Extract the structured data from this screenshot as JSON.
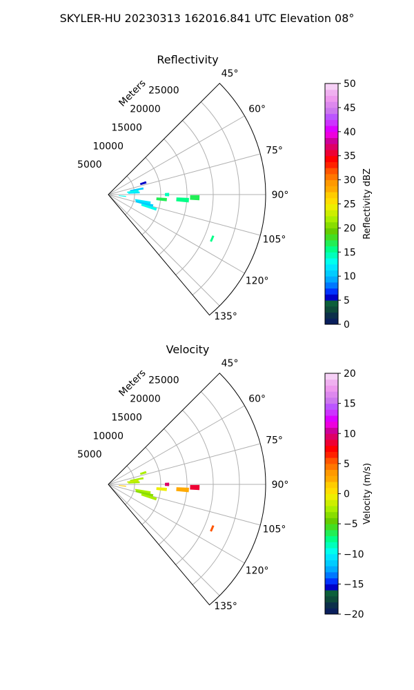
{
  "figure_title": "SKYLER-HU  20230313  162016.841 UTC Elevation 08°",
  "chart_data": [
    {
      "type": "polar-sector",
      "title": "Reflectivity",
      "radial_label": "Meters",
      "radial_ticks": [
        5000,
        10000,
        15000,
        20000,
        25000
      ],
      "radial_tick_labels": [
        "5000",
        "10000",
        "15000",
        "20000",
        "25000"
      ],
      "rlim": [
        0,
        30000
      ],
      "azimuth_range_deg": [
        45,
        140
      ],
      "azimuth_ticks": [
        "45°",
        "60°",
        "75°",
        "90°",
        "105°",
        "120°",
        "135°"
      ],
      "grid": true,
      "colorbar": {
        "label": "Reflectivity dBZ",
        "range": [
          0,
          50
        ],
        "ticks": [
          "0",
          "5",
          "10",
          "15",
          "20",
          "25",
          "30",
          "35",
          "40",
          "45",
          "50"
        ],
        "colors": [
          "#0a1f5c",
          "#0c2f4a",
          "#0e4a3a",
          "#0d5f3a",
          "#0000c8",
          "#0033ff",
          "#0077ff",
          "#00aaff",
          "#00ccff",
          "#00e6ff",
          "#00ffee",
          "#00ffbb",
          "#00ff88",
          "#22ee55",
          "#44dd22",
          "#66cc00",
          "#88dd00",
          "#aaee00",
          "#ccee00",
          "#eeee00",
          "#ffdd00",
          "#ffcc00",
          "#ffaa00",
          "#ff9900",
          "#ff7700",
          "#ff5500",
          "#ff2200",
          "#ff0000",
          "#ee0033",
          "#dd0066",
          "#cc0099",
          "#ee00dd",
          "#dd00ff",
          "#cc33ff",
          "#bb55ff",
          "#cc77ee",
          "#dd88ee",
          "#ee99ee",
          "#f0b0f0",
          "#f6d0f6"
        ]
      },
      "echoes": [
        {
          "az": 80,
          "r": [
            4200,
            6800
          ],
          "value": 10
        },
        {
          "az": 83,
          "r": [
            3600,
            5800
          ],
          "value": 13
        },
        {
          "az": 86,
          "r": [
            3800,
            6000
          ],
          "value": 12
        },
        {
          "az": 72,
          "r": [
            6400,
            7600
          ],
          "value": 6
        },
        {
          "az": 96,
          "r": [
            2000,
            3400
          ],
          "value": 13
        },
        {
          "az": 101,
          "r": [
            5200,
            8200
          ],
          "value": 12
        },
        {
          "az": 104,
          "r": [
            5400,
            8800
          ],
          "value": 11
        },
        {
          "az": 107,
          "r": [
            6600,
            9600
          ],
          "value": 13
        },
        {
          "az": 95,
          "r": [
            9200,
            11200
          ],
          "value": 17
        },
        {
          "az": 94,
          "r": [
            13000,
            15400
          ],
          "value": 16
        },
        {
          "az": 92,
          "r": [
            15600,
            17400
          ],
          "value": 17
        },
        {
          "az": 90,
          "r": [
            10800,
            11600
          ],
          "value": 14
        },
        {
          "az": 113,
          "r": [
            21300,
            21700
          ],
          "value": 15
        }
      ]
    },
    {
      "type": "polar-sector",
      "title": "Velocity",
      "radial_label": "Meters",
      "radial_ticks": [
        5000,
        10000,
        15000,
        20000,
        25000
      ],
      "radial_tick_labels": [
        "5000",
        "10000",
        "15000",
        "20000",
        "25000"
      ],
      "rlim": [
        0,
        30000
      ],
      "azimuth_range_deg": [
        45,
        140
      ],
      "azimuth_ticks": [
        "45°",
        "60°",
        "75°",
        "90°",
        "105°",
        "120°",
        "135°"
      ],
      "grid": true,
      "colorbar": {
        "label": "Velocity (m/s)",
        "range": [
          -20,
          20
        ],
        "ticks": [
          "−20",
          "−15",
          "−10",
          "−5",
          "0",
          "5",
          "10",
          "15",
          "20"
        ],
        "colors": [
          "#0a1f5c",
          "#0c2f4a",
          "#0e4a3a",
          "#0d5f3a",
          "#0000c8",
          "#0033ff",
          "#0077ff",
          "#00aaff",
          "#00ccff",
          "#00e6ff",
          "#00ffee",
          "#00ffbb",
          "#00ff88",
          "#22ee55",
          "#44dd22",
          "#66cc00",
          "#88dd00",
          "#aaee00",
          "#ccee00",
          "#eeee00",
          "#ffdd00",
          "#ffcc00",
          "#ffaa00",
          "#ff9900",
          "#ff7700",
          "#ff5500",
          "#ff2200",
          "#ff0000",
          "#ee0033",
          "#dd0066",
          "#cc0099",
          "#ee00dd",
          "#dd00ff",
          "#cc33ff",
          "#bb55ff",
          "#cc77ee",
          "#dd88ee",
          "#ee99ee",
          "#f0b0f0",
          "#f6d0f6"
        ]
      },
      "echoes": [
        {
          "az": 80,
          "r": [
            4200,
            6800
          ],
          "value": -3
        },
        {
          "az": 83,
          "r": [
            3600,
            5800
          ],
          "value": -2
        },
        {
          "az": 86,
          "r": [
            3800,
            6000
          ],
          "value": -3
        },
        {
          "az": 72,
          "r": [
            6400,
            7600
          ],
          "value": -3
        },
        {
          "az": 96,
          "r": [
            2000,
            3400
          ],
          "value": 1
        },
        {
          "az": 101,
          "r": [
            5200,
            8200
          ],
          "value": -3
        },
        {
          "az": 104,
          "r": [
            5400,
            8800
          ],
          "value": -4
        },
        {
          "az": 107,
          "r": [
            6600,
            9600
          ],
          "value": -3
        },
        {
          "az": 95,
          "r": [
            9200,
            11200
          ],
          "value": -1
        },
        {
          "az": 94,
          "r": [
            13000,
            15400
          ],
          "value": 2
        },
        {
          "az": 92,
          "r": [
            15600,
            17400
          ],
          "value": 8
        },
        {
          "az": 90,
          "r": [
            10800,
            11600
          ],
          "value": 9
        },
        {
          "az": 113,
          "r": [
            21300,
            21700
          ],
          "value": 5
        }
      ]
    }
  ]
}
